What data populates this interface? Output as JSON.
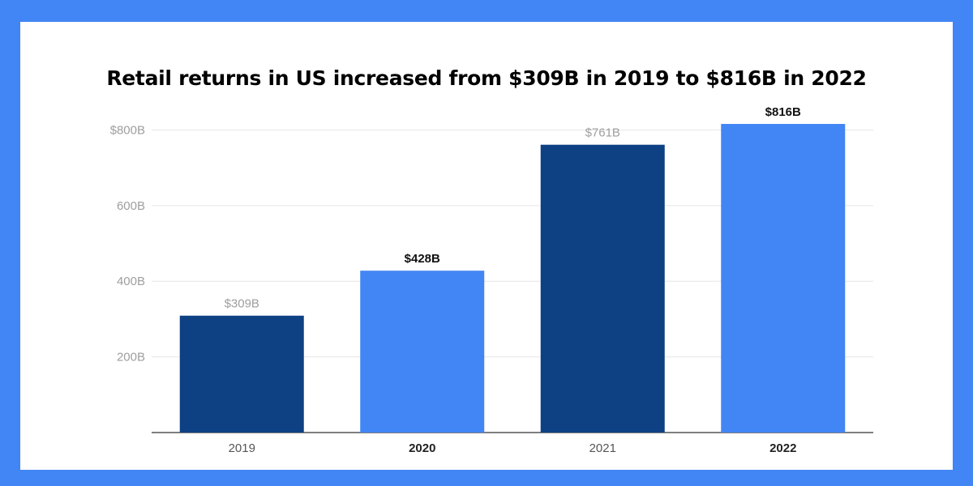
{
  "chart_data": {
    "type": "bar",
    "title": "Retail returns in US increased from $309B in 2019 to $816B in 2022",
    "categories": [
      "2019",
      "2020",
      "2021",
      "2022"
    ],
    "values": [
      309,
      428,
      761,
      816
    ],
    "data_labels": [
      "$309B",
      "$428B",
      "$761B",
      "$816B"
    ],
    "bar_colors": [
      "#0d4184",
      "#4285f4",
      "#0d4184",
      "#4285f4"
    ],
    "highlighted": [
      false,
      true,
      false,
      true
    ],
    "y_ticks": [
      200,
      400,
      600,
      800
    ],
    "y_tick_labels": [
      "200B",
      "400B",
      "600B",
      "$800B"
    ],
    "ylim": [
      0,
      800
    ],
    "xlabel": "",
    "ylabel": "",
    "grid": true,
    "legend": "none"
  },
  "colors": {
    "frame": "#4285f4",
    "dark_bar": "#0d4184",
    "light_bar": "#4285f4",
    "grid": "#e6e6e6"
  }
}
